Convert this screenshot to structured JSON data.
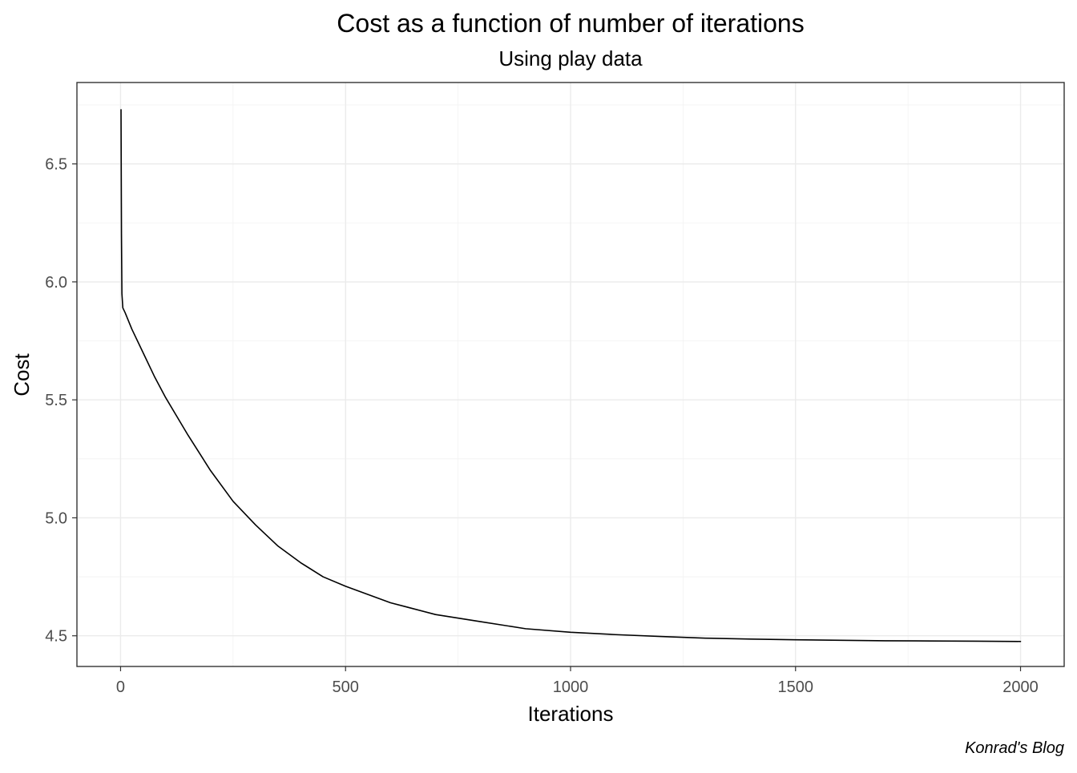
{
  "chart_data": {
    "type": "line",
    "title": "Cost as a function of number of iterations",
    "subtitle": "Using play data",
    "xlabel": "Iterations",
    "ylabel": "Cost",
    "caption": "Konrad's Blog",
    "xlim": [
      -97,
      2097
    ],
    "ylim": [
      4.37,
      6.845
    ],
    "x_ticks": [
      0,
      500,
      1000,
      1500,
      2000
    ],
    "x_tick_labels": [
      "0",
      "500",
      "1000",
      "1500",
      "2000"
    ],
    "y_ticks": [
      4.5,
      5.0,
      5.5,
      6.0,
      6.5
    ],
    "y_tick_labels": [
      "4.5",
      "5.0",
      "5.5",
      "6.0",
      "6.5"
    ],
    "grid": true,
    "line_color": "#000000",
    "series": [
      {
        "x": [
          1,
          2,
          3,
          5,
          10,
          25,
          50,
          75,
          100,
          150,
          200,
          250,
          300,
          350,
          400,
          450,
          500,
          600,
          700,
          800,
          900,
          1000,
          1100,
          1200,
          1300,
          1400,
          1500,
          1600,
          1700,
          1800,
          1900,
          2000
        ],
        "y": [
          6.73,
          6.2,
          5.95,
          5.89,
          5.87,
          5.8,
          5.7,
          5.6,
          5.51,
          5.35,
          5.2,
          5.07,
          4.97,
          4.88,
          4.81,
          4.75,
          4.71,
          4.64,
          4.59,
          4.56,
          4.53,
          4.515,
          4.505,
          4.497,
          4.49,
          4.486,
          4.483,
          4.481,
          4.479,
          4.478,
          4.477,
          4.476
        ]
      }
    ]
  }
}
